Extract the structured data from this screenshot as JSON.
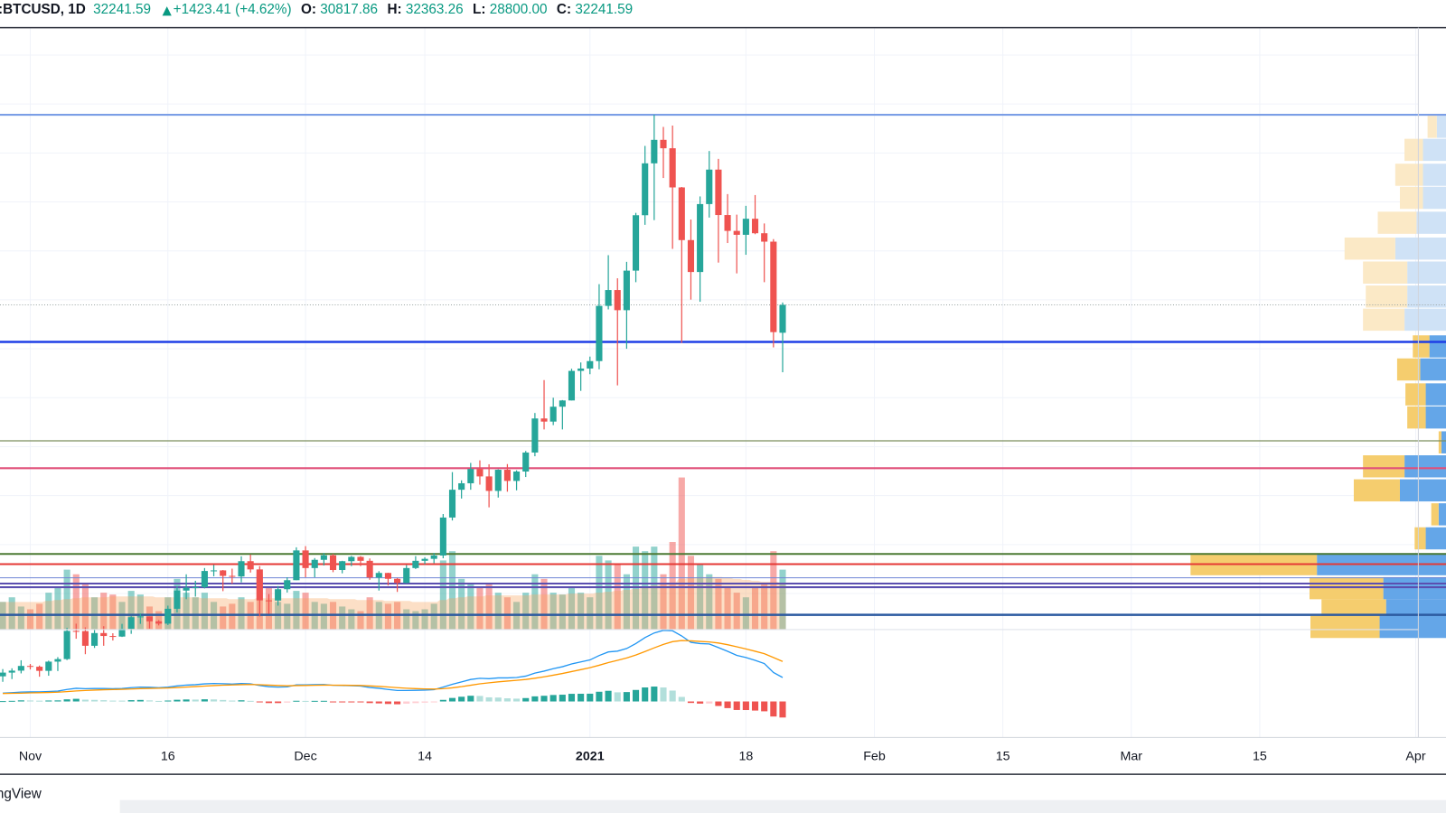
{
  "header": {
    "symbol": ":BTCUSD, 1D",
    "last": "32241.59",
    "change": "+1423.41 (+4.62%)",
    "open_label": "O:",
    "open": "30817.86",
    "high_label": "H:",
    "high": "32363.26",
    "low_label": "L:",
    "low": "28800.00",
    "close_label": "C:",
    "close": "32241.59"
  },
  "footer": {
    "text": "ngView"
  },
  "chart_data": {
    "type": "candlestick",
    "up_color": "#26a69a",
    "down_color": "#ef5350",
    "xlim": [
      -0.3,
      157.3
    ],
    "ylim": [
      10150,
      46400
    ],
    "xticks": [
      {
        "value": 3,
        "label": "Nov"
      },
      {
        "value": 18,
        "label": "16"
      },
      {
        "value": 33,
        "label": "Dec"
      },
      {
        "value": 46,
        "label": "14"
      },
      {
        "value": 64,
        "label": "2021"
      },
      {
        "value": 81,
        "label": "18"
      },
      {
        "value": 95,
        "label": "Feb"
      },
      {
        "value": 109,
        "label": "15"
      },
      {
        "value": 123,
        "label": "Mar"
      },
      {
        "value": 137,
        "label": "15"
      },
      {
        "value": 154,
        "label": "Apr"
      }
    ],
    "grid_levels": [
      17500,
      20000,
      22500,
      25000,
      27500,
      30000,
      32500,
      35000,
      37500,
      40000,
      42500,
      45000
    ],
    "grid": true,
    "candles": [
      [
        13270,
        13640,
        12990,
        13460
      ],
      [
        13460,
        13680,
        13130,
        13560
      ],
      [
        13560,
        14090,
        13420,
        13800
      ],
      [
        13800,
        13900,
        13620,
        13760
      ],
      [
        13760,
        13820,
        13250,
        13550
      ],
      [
        13550,
        14070,
        13300,
        14020
      ],
      [
        14020,
        14250,
        13540,
        14150
      ],
      [
        14150,
        15750,
        14100,
        15590
      ],
      [
        15590,
        15960,
        15190,
        15580
      ],
      [
        15580,
        15770,
        14400,
        14830
      ],
      [
        14830,
        15640,
        14720,
        15480
      ],
      [
        15480,
        15830,
        14830,
        15330
      ],
      [
        15330,
        15470,
        15100,
        15300
      ],
      [
        15300,
        15950,
        15280,
        15700
      ],
      [
        15700,
        16340,
        15440,
        16290
      ],
      [
        16290,
        16480,
        15950,
        16330
      ],
      [
        16330,
        16330,
        15710,
        16080
      ],
      [
        16080,
        16140,
        15870,
        15960
      ],
      [
        15960,
        16880,
        15890,
        16720
      ],
      [
        16720,
        17860,
        16530,
        17650
      ],
      [
        17650,
        18480,
        17210,
        17800
      ],
      [
        17800,
        18150,
        17340,
        17820
      ],
      [
        17820,
        18800,
        17760,
        18650
      ],
      [
        18650,
        18960,
        18380,
        18680
      ],
      [
        18680,
        18700,
        17620,
        18400
      ],
      [
        18400,
        18770,
        18000,
        18370
      ],
      [
        18370,
        19400,
        18070,
        19150
      ],
      [
        19150,
        19490,
        18570,
        18730
      ],
      [
        18730,
        18900,
        16330,
        17150
      ],
      [
        17150,
        17470,
        16460,
        17140
      ],
      [
        17140,
        17880,
        16880,
        17720
      ],
      [
        17720,
        18330,
        17550,
        18180
      ],
      [
        18180,
        19860,
        18180,
        19700
      ],
      [
        19700,
        19920,
        18330,
        18800
      ],
      [
        18800,
        19310,
        18330,
        19220
      ],
      [
        19220,
        19570,
        18930,
        19450
      ],
      [
        19450,
        19520,
        18590,
        18700
      ],
      [
        18700,
        19170,
        18530,
        19150
      ],
      [
        19150,
        19420,
        18900,
        19370
      ],
      [
        19370,
        19410,
        18900,
        19170
      ],
      [
        19170,
        19290,
        18200,
        18320
      ],
      [
        18320,
        18640,
        17650,
        18550
      ],
      [
        18550,
        18560,
        17910,
        18250
      ],
      [
        18250,
        18290,
        17580,
        18040
      ],
      [
        18040,
        18950,
        18020,
        18800
      ],
      [
        18800,
        19410,
        18750,
        19170
      ],
      [
        19170,
        19350,
        19000,
        19270
      ],
      [
        19270,
        19570,
        19050,
        19440
      ],
      [
        19440,
        21560,
        19300,
        21380
      ],
      [
        21380,
        23700,
        21230,
        22800
      ],
      [
        22800,
        23280,
        22350,
        23130
      ],
      [
        23130,
        24170,
        22800,
        23860
      ],
      [
        23860,
        24300,
        23060,
        23480
      ],
      [
        23480,
        24100,
        21900,
        22740
      ],
      [
        22740,
        23840,
        22400,
        23820
      ],
      [
        23820,
        24110,
        22700,
        23250
      ],
      [
        23250,
        23790,
        22770,
        23730
      ],
      [
        23730,
        24780,
        23450,
        24700
      ],
      [
        24700,
        26720,
        24510,
        26440
      ],
      [
        26440,
        28400,
        25880,
        26280
      ],
      [
        26280,
        27500,
        26100,
        27040
      ],
      [
        27040,
        27380,
        25880,
        27360
      ],
      [
        27360,
        28980,
        27360,
        28870
      ],
      [
        28870,
        29300,
        27850,
        28990
      ],
      [
        28990,
        29600,
        28700,
        29370
      ],
      [
        29370,
        33300,
        28950,
        32190
      ],
      [
        32190,
        34780,
        32010,
        33000
      ],
      [
        33000,
        33600,
        28130,
        31970
      ],
      [
        31970,
        34440,
        30000,
        33990
      ],
      [
        33990,
        36940,
        33400,
        36820
      ],
      [
        36820,
        40360,
        36330,
        39470
      ],
      [
        39470,
        41950,
        36570,
        40670
      ],
      [
        40670,
        41330,
        38720,
        40240
      ],
      [
        40240,
        41400,
        35100,
        38240
      ],
      [
        38240,
        38260,
        30300,
        35550
      ],
      [
        35550,
        36600,
        32510,
        33920
      ],
      [
        33920,
        37780,
        32400,
        37390
      ],
      [
        37390,
        40100,
        36700,
        39150
      ],
      [
        39150,
        39700,
        34400,
        36830
      ],
      [
        36830,
        37900,
        35400,
        36020
      ],
      [
        36020,
        36850,
        33850,
        35820
      ],
      [
        35820,
        37300,
        34800,
        36640
      ],
      [
        36640,
        37850,
        35850,
        35900
      ],
      [
        35900,
        36400,
        33400,
        35470
      ],
      [
        35470,
        35600,
        30070,
        30850
      ],
      [
        30817.86,
        32363.26,
        28800,
        32241.59
      ]
    ],
    "volume": {
      "vlim": [
        0,
        600
      ],
      "up_color": "rgba(38,166,154,0.5)",
      "down_color": "rgba(239,83,80,0.5)",
      "ma_color": "rgba(247,163,92,0.35)",
      "values": [
        30,
        35,
        25,
        22,
        28,
        40,
        45,
        65,
        60,
        50,
        35,
        40,
        38,
        30,
        42,
        38,
        25,
        20,
        35,
        55,
        40,
        35,
        40,
        30,
        25,
        28,
        35,
        30,
        60,
        45,
        30,
        28,
        42,
        40,
        30,
        28,
        30,
        25,
        22,
        20,
        35,
        30,
        28,
        30,
        22,
        20,
        22,
        28,
        75,
        85,
        55,
        50,
        45,
        50,
        40,
        35,
        30,
        40,
        60,
        55,
        40,
        38,
        45,
        40,
        35,
        80,
        75,
        70,
        60,
        90,
        85,
        90,
        60,
        95,
        165,
        80,
        70,
        60,
        55,
        45,
        40,
        35,
        45,
        50,
        85,
        65
      ],
      "ma": [
        30,
        30,
        30,
        30,
        30,
        31,
        32,
        33,
        34,
        35,
        35,
        35,
        36,
        36,
        36,
        36,
        36,
        35,
        35,
        35,
        35,
        35,
        34,
        34,
        34,
        33,
        33,
        33,
        34,
        34,
        34,
        34,
        34,
        34,
        34,
        34,
        33,
        33,
        33,
        32,
        32,
        32,
        31,
        31,
        31,
        30,
        30,
        30,
        32,
        34,
        35,
        36,
        36,
        37,
        37,
        37,
        37,
        37,
        38,
        38,
        38,
        38,
        39,
        39,
        39,
        40,
        41,
        42,
        43,
        44,
        46,
        48,
        49,
        51,
        55,
        56,
        57,
        57,
        57,
        56,
        55,
        54,
        53,
        52,
        52,
        51
      ]
    },
    "macd": {
      "mlim": [
        -1800,
        3600
      ],
      "macd_color": "#2196f3",
      "signal_color": "#ff9800",
      "hist_colors": [
        "#26a69a",
        "#b2dfdb",
        "#ffcdd2",
        "#ef5350"
      ],
      "macd": [
        420,
        440,
        470,
        480,
        480,
        500,
        520,
        600,
        660,
        640,
        650,
        650,
        640,
        650,
        690,
        720,
        710,
        690,
        720,
        780,
        820,
        840,
        880,
        900,
        890,
        870,
        900,
        880,
        800,
        740,
        720,
        730,
        830,
        830,
        840,
        850,
        810,
        800,
        790,
        770,
        700,
        660,
        600,
        550,
        550,
        560,
        570,
        590,
        720,
        860,
        980,
        1100,
        1160,
        1140,
        1180,
        1180,
        1200,
        1270,
        1420,
        1520,
        1640,
        1740,
        1880,
        1980,
        2080,
        2300,
        2480,
        2520,
        2650,
        2900,
        3200,
        3430,
        3560,
        3540,
        3280,
        2960,
        2900,
        2880,
        2700,
        2510,
        2310,
        2200,
        2060,
        1900,
        1450,
        1200
      ],
      "signal": [
        400,
        408,
        414,
        430,
        440,
        452,
        466,
        493,
        527,
        550,
        570,
        586,
        597,
        608,
        624,
        643,
        656,
        663,
        674,
        695,
        720,
        744,
        771,
        797,
        815,
        826,
        841,
        849,
        839,
        820,
        800,
        786,
        795,
        802,
        809,
        817,
        816,
        813,
        808,
        800,
        780,
        756,
        725,
        690,
        662,
        642,
        628,
        620,
        640,
        684,
        743,
        814,
        883,
        934,
        983,
        1022,
        1058,
        1100,
        1164,
        1235,
        1316,
        1401,
        1497,
        1594,
        1691,
        1813,
        1946,
        2061,
        2179,
        2323,
        2498,
        2684,
        2859,
        2995,
        3052,
        3034,
        3007,
        2982,
        2926,
        2843,
        2736,
        2629,
        2515,
        2392,
        2203,
        2003
      ],
      "hist": [
        20,
        32,
        56,
        50,
        40,
        48,
        54,
        107,
        133,
        90,
        80,
        64,
        43,
        42,
        66,
        77,
        54,
        27,
        46,
        85,
        100,
        96,
        109,
        103,
        75,
        44,
        59,
        31,
        -39,
        -80,
        -80,
        -56,
        35,
        28,
        31,
        33,
        -6,
        -13,
        -18,
        -30,
        -80,
        -96,
        -125,
        -140,
        -112,
        -82,
        -58,
        -30,
        80,
        176,
        237,
        286,
        277,
        206,
        197,
        158,
        142,
        170,
        256,
        285,
        324,
        339,
        383,
        386,
        389,
        487,
        534,
        459,
        471,
        577,
        702,
        746,
        701,
        545,
        228,
        -74,
        -107,
        -102,
        -226,
        -333,
        -426,
        -429,
        -455,
        -492,
        -753,
        -803
      ]
    },
    "levels": [
      {
        "price": 41950,
        "color": "#7b9ee6",
        "width": 2
      },
      {
        "price": 30350,
        "color": "#1e3ee6",
        "width": 2.5
      },
      {
        "price": 25300,
        "color": "#7c8f5e",
        "width": 1.2
      },
      {
        "price": 23900,
        "color": "#e0507a",
        "width": 2
      },
      {
        "price": 19520,
        "color": "#4c7a34",
        "width": 2
      },
      {
        "price": 19000,
        "color": "#e53935",
        "width": 2
      },
      {
        "price": 18300,
        "color": "#6f86d6",
        "width": 1
      },
      {
        "price": 18010,
        "color": "#5b4fb0",
        "width": 2
      },
      {
        "price": 17820,
        "color": "#5b4fb0",
        "width": 2
      },
      {
        "price": 16410,
        "color": "#2c5aa0",
        "width": 2.5
      }
    ],
    "volume_profile": {
      "value_area": [
        15200,
        30700
      ],
      "up_color": "#64a6e8",
      "down_color": "#f5cd6e",
      "up_light": "#cfe2f6",
      "down_light": "#fbe9c6",
      "rows": [
        {
          "price": 41337,
          "up": 10,
          "down": 10
        },
        {
          "price": 40159,
          "up": 25,
          "down": 20
        },
        {
          "price": 38886,
          "up": 25,
          "down": 30
        },
        {
          "price": 37708,
          "up": 25,
          "down": 25
        },
        {
          "price": 36436,
          "up": 32,
          "down": 42
        },
        {
          "price": 35116,
          "up": 55,
          "down": 55
        },
        {
          "price": 33891,
          "up": 42,
          "down": 48
        },
        {
          "price": 32665,
          "up": 42,
          "down": 45
        },
        {
          "price": 31487,
          "up": 45,
          "down": 45
        },
        {
          "price": 30120,
          "up": 18,
          "down": 18
        },
        {
          "price": 28942,
          "up": 28,
          "down": 25
        },
        {
          "price": 27669,
          "up": 22,
          "down": 22
        },
        {
          "price": 26491,
          "up": 22,
          "down": 20
        },
        {
          "price": 25219,
          "up": 5,
          "down": 3
        },
        {
          "price": 23994,
          "up": 45,
          "down": 45
        },
        {
          "price": 22768,
          "up": 50,
          "down": 50
        },
        {
          "price": 21543,
          "up": 8,
          "down": 8
        },
        {
          "price": 20317,
          "up": 22,
          "down": 12
        },
        {
          "price": 18997,
          "up": 140,
          "down": 137
        },
        {
          "price": 17772,
          "up": 68,
          "down": 80
        },
        {
          "price": 16641,
          "up": 65,
          "down": 70
        },
        {
          "price": 15793,
          "up": 72,
          "down": 75
        }
      ]
    }
  }
}
